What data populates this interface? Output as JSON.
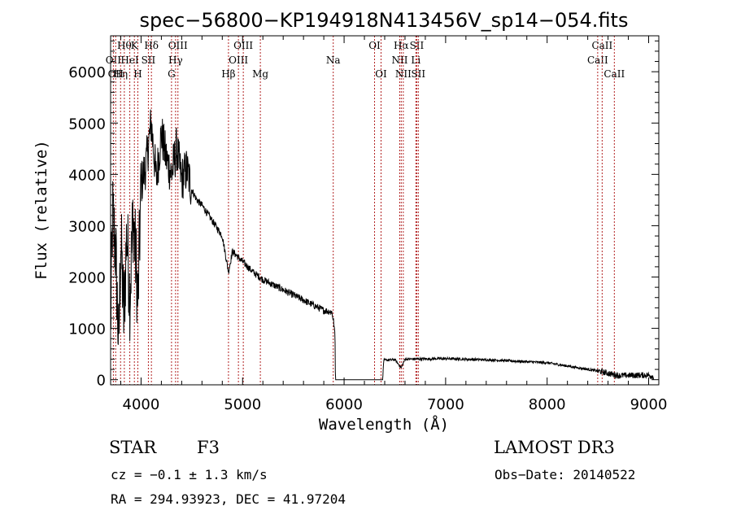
{
  "chart_data": {
    "type": "line",
    "title": "spec−56800−KP194918N413456V_sp14−054.fits",
    "xlabel": "Wavelength (Å)",
    "ylabel": "Flux (relative)",
    "xlim": [
      3700,
      9100
    ],
    "ylim": [
      -100,
      6700
    ],
    "x_ticks": [
      4000,
      5000,
      6000,
      7000,
      8000,
      9000
    ],
    "y_ticks": [
      0,
      1000,
      2000,
      3000,
      4000,
      5000,
      6000
    ],
    "spectrum_anchor_points": [
      [
        3700,
        1000
      ],
      [
        3720,
        3200
      ],
      [
        3750,
        2500
      ],
      [
        3780,
        600
      ],
      [
        3800,
        2800
      ],
      [
        3830,
        1200
      ],
      [
        3860,
        2900
      ],
      [
        3890,
        1600
      ],
      [
        3920,
        3200
      ],
      [
        3950,
        2300
      ],
      [
        3970,
        1500
      ],
      [
        4000,
        3800
      ],
      [
        4050,
        4200
      ],
      [
        4100,
        5000
      ],
      [
        4150,
        3900
      ],
      [
        4200,
        4800
      ],
      [
        4250,
        4300
      ],
      [
        4300,
        4000
      ],
      [
        4350,
        4500
      ],
      [
        4400,
        3900
      ],
      [
        4450,
        4100
      ],
      [
        4500,
        3700
      ],
      [
        4550,
        3500
      ],
      [
        4600,
        3400
      ],
      [
        4700,
        3100
      ],
      [
        4800,
        2800
      ],
      [
        4861,
        2100
      ],
      [
        4900,
        2500
      ],
      [
        5000,
        2300
      ],
      [
        5100,
        2100
      ],
      [
        5200,
        1950
      ],
      [
        5400,
        1750
      ],
      [
        5600,
        1550
      ],
      [
        5800,
        1350
      ],
      [
        5880,
        1320
      ],
      [
        5895,
        1150
      ],
      [
        5910,
        900
      ],
      [
        5915,
        0
      ],
      [
        6000,
        0
      ],
      [
        6380,
        0
      ],
      [
        6390,
        380
      ],
      [
        6500,
        390
      ],
      [
        6563,
        230
      ],
      [
        6600,
        400
      ],
      [
        7000,
        410
      ],
      [
        7500,
        380
      ],
      [
        8000,
        330
      ],
      [
        8500,
        170
      ],
      [
        8700,
        80
      ],
      [
        9000,
        90
      ],
      [
        9050,
        60
      ]
    ],
    "line_markers": [
      {
        "wavelength": 3727,
        "label": "OII",
        "row": 2
      },
      {
        "wavelength": 3750,
        "label": "OII",
        "row": 3
      },
      {
        "wavelength": 3798,
        "label": "Hη",
        "row": 3
      },
      {
        "wavelength": 3835,
        "label": "Hθ",
        "row": 1
      },
      {
        "wavelength": 3889,
        "label": "HeI",
        "row": 2
      },
      {
        "wavelength": 3934,
        "label": "K",
        "row": 1
      },
      {
        "wavelength": 3968,
        "label": "H",
        "row": 3
      },
      {
        "wavelength": 4072,
        "label": "SII",
        "row": 2
      },
      {
        "wavelength": 4102,
        "label": "Hδ",
        "row": 1
      },
      {
        "wavelength": 4300,
        "label": "G",
        "row": 3
      },
      {
        "wavelength": 4340,
        "label": "Hγ",
        "row": 2
      },
      {
        "wavelength": 4363,
        "label": "OIII",
        "row": 1
      },
      {
        "wavelength": 4861,
        "label": "Hβ",
        "row": 3
      },
      {
        "wavelength": 4959,
        "label": "OIII",
        "row": 2
      },
      {
        "wavelength": 5007,
        "label": "OIII",
        "row": 1
      },
      {
        "wavelength": 5175,
        "label": "Mg",
        "row": 3
      },
      {
        "wavelength": 5893,
        "label": "Na",
        "row": 2
      },
      {
        "wavelength": 6300,
        "label": "OI",
        "row": 1
      },
      {
        "wavelength": 6364,
        "label": "OI",
        "row": 3
      },
      {
        "wavelength": 6548,
        "label": "NII",
        "row": 2
      },
      {
        "wavelength": 6563,
        "label": "Hα",
        "row": 1
      },
      {
        "wavelength": 6583,
        "label": "NII",
        "row": 3
      },
      {
        "wavelength": 6707,
        "label": "Li",
        "row": 2
      },
      {
        "wavelength": 6716,
        "label": "SII",
        "row": 1
      },
      {
        "wavelength": 6731,
        "label": "SII",
        "row": 3
      },
      {
        "wavelength": 8498,
        "label": "CaII",
        "row": 2
      },
      {
        "wavelength": 8542,
        "label": "CaII",
        "row": 1
      },
      {
        "wavelength": 8662,
        "label": "CaII",
        "row": 3
      }
    ]
  },
  "info": {
    "object_class": "STAR",
    "subclass": "F3",
    "survey": "LAMOST DR3",
    "redshift": "cz = −0.1 ± 1.3 km/s",
    "obs_date": "Obs−Date: 20140522",
    "coords": "RA = 294.93923, DEC =  41.97204"
  },
  "colors": {
    "spectrum": "#000000",
    "line_marker": "#b22222",
    "axis": "#000000"
  }
}
